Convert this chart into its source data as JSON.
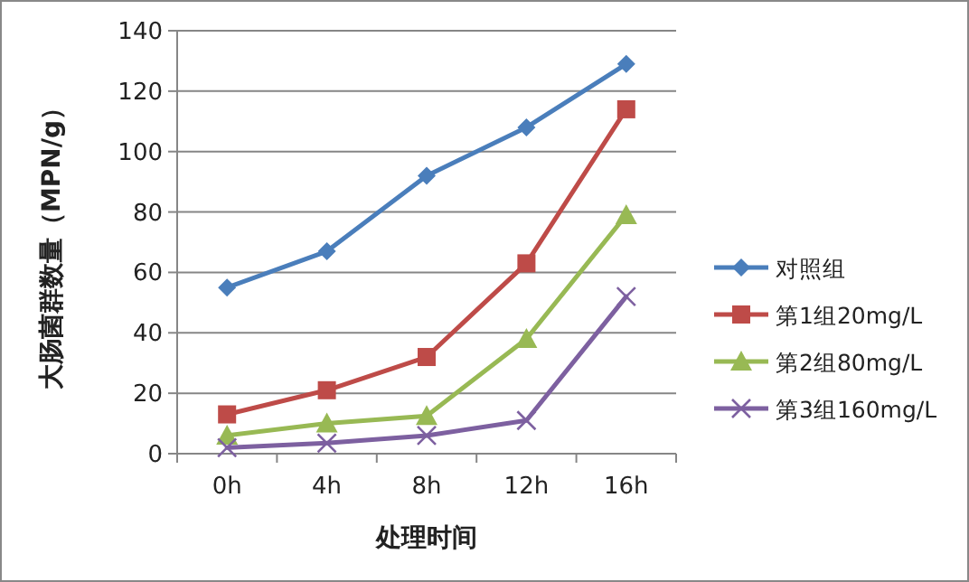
{
  "chart_data": {
    "type": "line",
    "xlabel": "处理时间",
    "ylabel": "大肠菌群数量（MPN/g）",
    "categories": [
      "0h",
      "4h",
      "8h",
      "12h",
      "16h"
    ],
    "series": [
      {
        "name": "对照组",
        "color": "#4a7ebb",
        "marker": "diamond",
        "values": [
          55,
          67,
          92,
          108,
          129
        ]
      },
      {
        "name": "第1组20mg/L",
        "color": "#be4b48",
        "marker": "square",
        "values": [
          13,
          21,
          32,
          63,
          114
        ]
      },
      {
        "name": "第2组80mg/L",
        "color": "#98b954",
        "marker": "triangle",
        "values": [
          6,
          10,
          12.5,
          38,
          79
        ]
      },
      {
        "name": "第3组160mg/L",
        "color": "#7d60a0",
        "marker": "cross",
        "values": [
          2,
          3.5,
          6,
          11,
          52
        ]
      }
    ],
    "ylim": [
      0,
      140
    ],
    "yticks": [
      0,
      20,
      40,
      60,
      80,
      100,
      120,
      140
    ],
    "grid": "y",
    "legend": "right"
  }
}
